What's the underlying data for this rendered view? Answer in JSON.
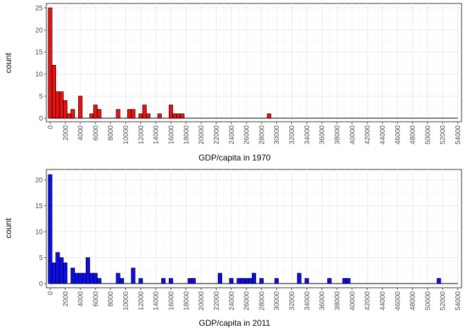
{
  "chart_data": [
    {
      "type": "bar",
      "variant": "histogram",
      "xlabel": "GDP/capita in 1970",
      "ylabel": "count",
      "bin_width": 500,
      "xlim": [
        -500,
        54500
      ],
      "ylim": [
        -0.8,
        26
      ],
      "fill_color": "#ee1111",
      "x_ticks": [
        0,
        2000,
        4000,
        6000,
        8000,
        10000,
        12000,
        14000,
        16000,
        18000,
        20000,
        22000,
        24000,
        26000,
        28000,
        30000,
        32000,
        34000,
        36000,
        38000,
        40000,
        42000,
        44000,
        46000,
        48000,
        50000,
        52000,
        54000
      ],
      "y_ticks": [
        0,
        5,
        10,
        15,
        20,
        25
      ],
      "bins": [
        {
          "x": 0,
          "count": 25
        },
        {
          "x": 500,
          "count": 12
        },
        {
          "x": 1000,
          "count": 6
        },
        {
          "x": 1500,
          "count": 6
        },
        {
          "x": 2000,
          "count": 4
        },
        {
          "x": 2500,
          "count": 1
        },
        {
          "x": 3000,
          "count": 2
        },
        {
          "x": 4000,
          "count": 5
        },
        {
          "x": 5500,
          "count": 1
        },
        {
          "x": 6000,
          "count": 3
        },
        {
          "x": 6500,
          "count": 2
        },
        {
          "x": 9000,
          "count": 2
        },
        {
          "x": 10500,
          "count": 2
        },
        {
          "x": 11000,
          "count": 2
        },
        {
          "x": 12000,
          "count": 1
        },
        {
          "x": 12500,
          "count": 3
        },
        {
          "x": 13000,
          "count": 1
        },
        {
          "x": 14500,
          "count": 1
        },
        {
          "x": 16000,
          "count": 3
        },
        {
          "x": 16500,
          "count": 1
        },
        {
          "x": 17000,
          "count": 1
        },
        {
          "x": 17500,
          "count": 1
        },
        {
          "x": 29000,
          "count": 1
        }
      ]
    },
    {
      "type": "bar",
      "variant": "histogram",
      "xlabel": "GDP/capita in 2011",
      "ylabel": "count",
      "bin_width": 500,
      "xlim": [
        -500,
        54500
      ],
      "ylim": [
        -0.8,
        22
      ],
      "fill_color": "#0c0cee",
      "x_ticks": [
        0,
        2000,
        4000,
        6000,
        8000,
        10000,
        12000,
        14000,
        16000,
        18000,
        20000,
        22000,
        24000,
        26000,
        28000,
        30000,
        32000,
        34000,
        36000,
        38000,
        40000,
        42000,
        44000,
        46000,
        48000,
        50000,
        52000,
        54000
      ],
      "y_ticks": [
        0,
        5,
        10,
        15,
        20
      ],
      "bins": [
        {
          "x": 0,
          "count": 21
        },
        {
          "x": 500,
          "count": 4
        },
        {
          "x": 1000,
          "count": 6
        },
        {
          "x": 1500,
          "count": 5
        },
        {
          "x": 2000,
          "count": 4
        },
        {
          "x": 3000,
          "count": 3
        },
        {
          "x": 3500,
          "count": 2
        },
        {
          "x": 4000,
          "count": 2
        },
        {
          "x": 4500,
          "count": 2
        },
        {
          "x": 5000,
          "count": 5
        },
        {
          "x": 5500,
          "count": 2
        },
        {
          "x": 6000,
          "count": 2
        },
        {
          "x": 6500,
          "count": 1
        },
        {
          "x": 9000,
          "count": 2
        },
        {
          "x": 9500,
          "count": 1
        },
        {
          "x": 11000,
          "count": 3
        },
        {
          "x": 12000,
          "count": 1
        },
        {
          "x": 15000,
          "count": 1
        },
        {
          "x": 16000,
          "count": 1
        },
        {
          "x": 18500,
          "count": 1
        },
        {
          "x": 19000,
          "count": 1
        },
        {
          "x": 22500,
          "count": 2
        },
        {
          "x": 24000,
          "count": 1
        },
        {
          "x": 25000,
          "count": 1
        },
        {
          "x": 25500,
          "count": 1
        },
        {
          "x": 26000,
          "count": 1
        },
        {
          "x": 26500,
          "count": 1
        },
        {
          "x": 27000,
          "count": 2
        },
        {
          "x": 28000,
          "count": 1
        },
        {
          "x": 30000,
          "count": 1
        },
        {
          "x": 33000,
          "count": 2
        },
        {
          "x": 34000,
          "count": 1
        },
        {
          "x": 37000,
          "count": 1
        },
        {
          "x": 39000,
          "count": 1
        },
        {
          "x": 39500,
          "count": 1
        },
        {
          "x": 51500,
          "count": 1
        }
      ]
    }
  ]
}
